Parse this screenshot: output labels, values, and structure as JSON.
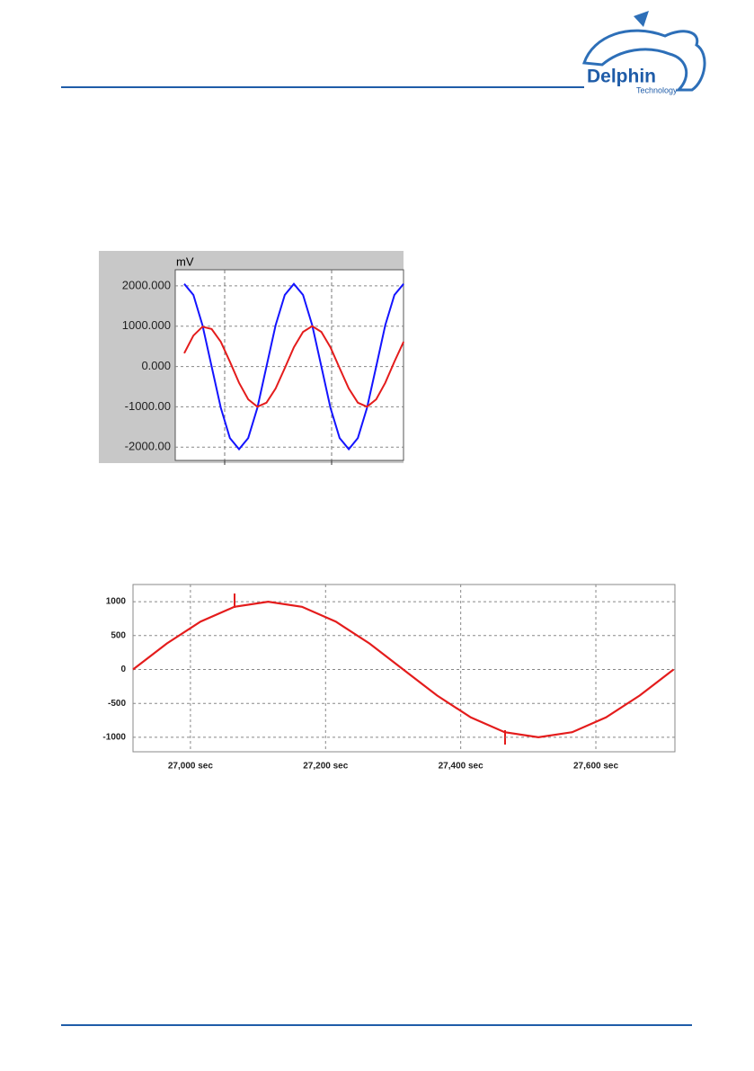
{
  "header": {
    "logo_title": "Delphin",
    "logo_subtitle": "Technology"
  },
  "chart_data": [
    {
      "type": "line",
      "y_label": "mV",
      "grid": true,
      "categories": [
        null,
        null,
        null,
        null,
        null,
        null,
        null,
        null,
        null,
        null,
        null,
        null,
        null,
        null,
        null,
        null,
        null,
        null,
        null,
        null,
        null,
        null,
        null,
        null,
        null
      ],
      "ylim": [
        -2330,
        2400
      ],
      "yticks": [
        {
          "value": 2000,
          "label": "2000.000"
        },
        {
          "value": 1000,
          "label": "1000.000"
        },
        {
          "value": 0,
          "label": "0.000"
        },
        {
          "value": -1000,
          "label": "-1000.00"
        },
        {
          "value": -2000,
          "label": "-2000.00"
        }
      ],
      "series": [
        {
          "color": "#1414ff",
          "values": [
            2050,
            1775,
            1025,
            0,
            -1025,
            -1775,
            -2050,
            -1775,
            -1025,
            0,
            1025,
            1775,
            2050,
            1775,
            1025,
            0,
            -1025,
            -1775,
            -2050,
            -1775,
            -1025,
            0,
            1025,
            1775,
            2050
          ]
        },
        {
          "color": "#e41c1c",
          "values": [
            330,
            766,
            987,
            930,
            612,
            120,
            -404,
            -815,
            -997,
            -898,
            -546,
            -40,
            476,
            859,
            1000,
            859,
            477,
            -40,
            -546,
            -898,
            -997,
            -815,
            -404,
            122,
            612
          ]
        }
      ]
    },
    {
      "type": "line",
      "grid": true,
      "x": [
        26915,
        26965,
        27015,
        27065,
        27115,
        27165,
        27215,
        27265,
        27315,
        27365,
        27415,
        27465,
        27515,
        27565,
        27615,
        27665,
        27715
      ],
      "xlim": [
        26915,
        27717
      ],
      "xticks": [
        {
          "value": 27000,
          "label": "27,000 sec"
        },
        {
          "value": 27200,
          "label": "27,200 sec"
        },
        {
          "value": 27400,
          "label": "27,400 sec"
        },
        {
          "value": 27600,
          "label": "27,600 sec"
        }
      ],
      "ylim": [
        -1213,
        1253
      ],
      "yticks": [
        1000,
        500,
        0,
        -500,
        -1000
      ],
      "series": [
        {
          "color": "#e41c1c",
          "values": [
            0,
            383,
            707,
            924,
            1000,
            924,
            707,
            383,
            0,
            -383,
            -707,
            -924,
            -1000,
            -924,
            -707,
            -383,
            0
          ]
        }
      ]
    }
  ]
}
